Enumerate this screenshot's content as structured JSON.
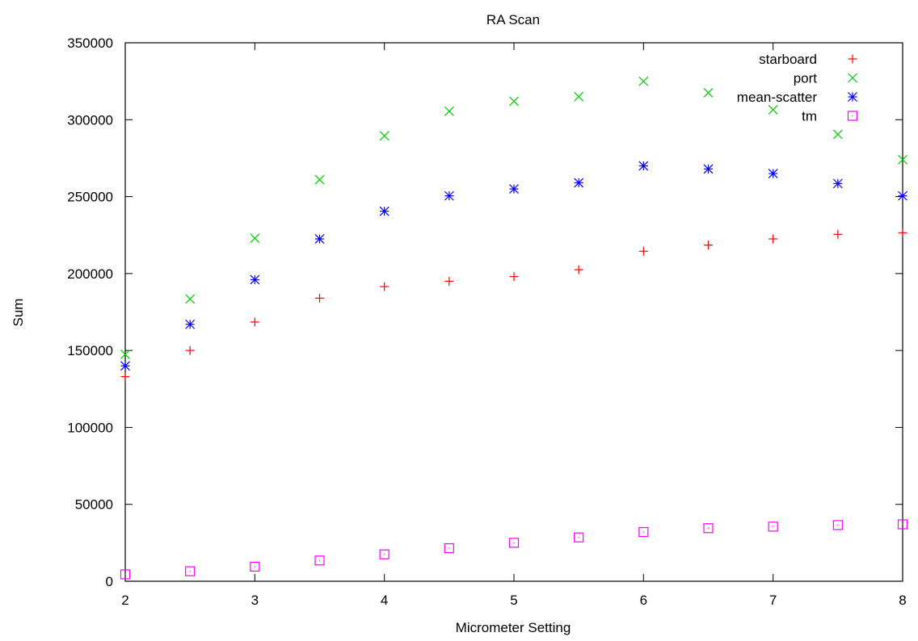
{
  "chart_data": {
    "type": "scatter",
    "title": "RA Scan",
    "xlabel": "Micrometer Setting",
    "ylabel": "Sum",
    "xlim": [
      2,
      8
    ],
    "ylim": [
      0,
      350000
    ],
    "xticks": [
      2,
      3,
      4,
      5,
      6,
      7,
      8
    ],
    "yticks": [
      0,
      50000,
      100000,
      150000,
      200000,
      250000,
      300000,
      350000
    ],
    "grid": false,
    "legend_position": "top-right",
    "x": [
      2,
      2.5,
      3,
      3.5,
      4,
      4.5,
      5,
      5.5,
      6,
      6.5,
      7,
      7.5,
      8
    ],
    "series": [
      {
        "name": "starboard",
        "marker": "plus",
        "color": "#ff0000",
        "values": [
          133000,
          150000,
          168500,
          184000,
          191500,
          195000,
          198000,
          202500,
          214500,
          218500,
          222500,
          225500,
          226500
        ]
      },
      {
        "name": "port",
        "marker": "cross",
        "color": "#00cc00",
        "values": [
          147500,
          183500,
          223000,
          261000,
          289500,
          305500,
          312000,
          315000,
          325000,
          317500,
          306500,
          290500,
          274000
        ]
      },
      {
        "name": "mean-scatter",
        "marker": "star",
        "color": "#0000ff",
        "values": [
          140000,
          167000,
          196000,
          222500,
          240500,
          250500,
          255000,
          259000,
          270000,
          268000,
          265000,
          258500,
          250500
        ]
      },
      {
        "name": "tm",
        "marker": "box",
        "color": "#ff00ff",
        "values": [
          4500,
          6500,
          9500,
          13500,
          17500,
          21500,
          25000,
          28500,
          32000,
          34500,
          35500,
          36500,
          37000
        ]
      }
    ]
  }
}
